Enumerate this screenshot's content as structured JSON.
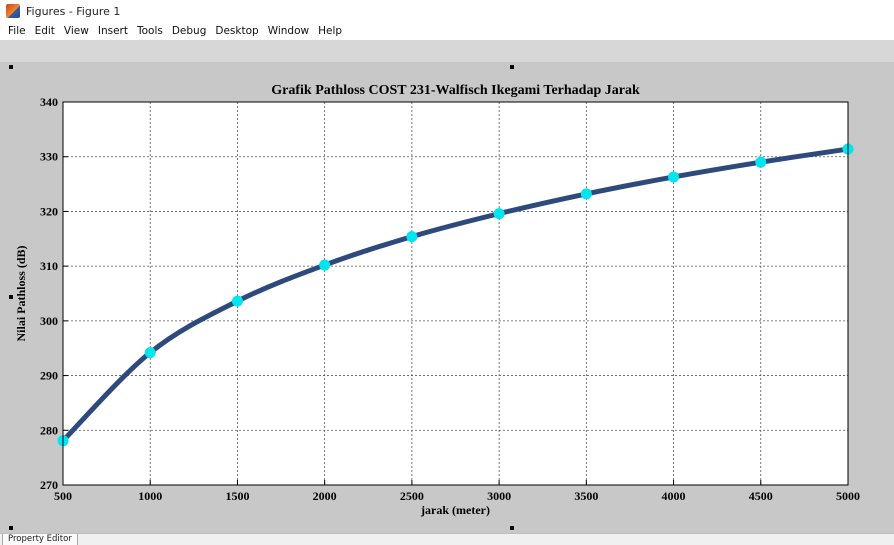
{
  "window": {
    "title": "Figures - Figure 1",
    "icon": "matlab-icon"
  },
  "menu": {
    "items": [
      "File",
      "Edit",
      "View",
      "Insert",
      "Tools",
      "Debug",
      "Desktop",
      "Window",
      "Help"
    ]
  },
  "status": {
    "property_editor_label": "Property Editor"
  },
  "colors": {
    "line": "#2e4a7d",
    "marker": "#00e5ee",
    "figure_bg": "#c8c8c8",
    "axes_bg": "#ffffff"
  },
  "chart_data": {
    "type": "line",
    "title": "Grafik Pathloss COST 231-Walfisch Ikegami Terhadap Jarak",
    "xlabel": "jarak (meter)",
    "ylabel": "Nilai Pathloss (dB)",
    "xlim": [
      500,
      5000
    ],
    "ylim": [
      270,
      340
    ],
    "xticks": [
      500,
      1000,
      1500,
      2000,
      2500,
      3000,
      3500,
      4000,
      4500,
      5000
    ],
    "yticks": [
      270,
      280,
      290,
      300,
      310,
      320,
      330,
      340
    ],
    "grid": true,
    "series": [
      {
        "x": [
          500,
          1000,
          1500,
          2000,
          2500,
          3000,
          3500,
          4000,
          4500,
          5000
        ],
        "y": [
          278.1,
          294.2,
          303.6,
          310.2,
          315.4,
          319.6,
          323.2,
          326.3,
          329.0,
          331.4
        ]
      }
    ]
  }
}
